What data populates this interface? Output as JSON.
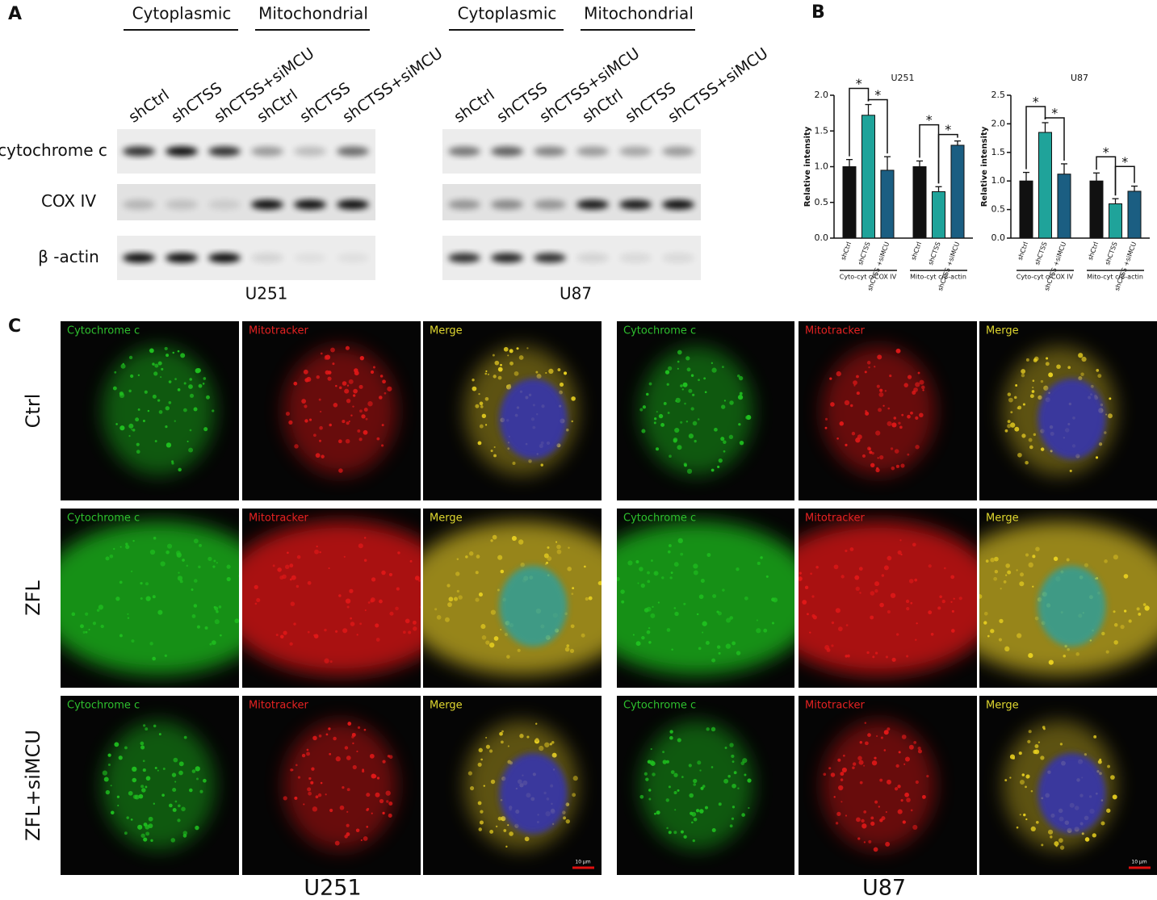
{
  "panel_a": {
    "label": "A",
    "cell_lines": [
      {
        "name": "U251",
        "fractions": [
          "Cytoplasmic",
          "Mitochondrial"
        ],
        "lanes": [
          "shCtrl",
          "shCTSS",
          "shCTSS+siMCU",
          "shCtrl",
          "shCTSS",
          "shCTSS+siMCU"
        ]
      },
      {
        "name": "U87",
        "fractions": [
          "Cytoplasmic",
          "Mitochondrial"
        ],
        "lanes": [
          "shCtrl",
          "shCTSS",
          "shCTSS+siMCU",
          "shCtrl",
          "shCTSS",
          "shCTSS+siMCU"
        ]
      }
    ],
    "rows": [
      "cytochrome c",
      "COX IV",
      "β -actin"
    ]
  },
  "panel_b_label": "B",
  "chart_data": [
    {
      "type": "bar",
      "title": "U251",
      "y_label": "Relative intensity",
      "ylim": [
        0,
        2
      ],
      "yticks": [
        {
          "value": 0,
          "label": "0.0"
        },
        {
          "value": 0.5,
          "label": "0.5"
        },
        {
          "value": 1,
          "label": "1.0"
        },
        {
          "value": 1.5,
          "label": "1.5"
        },
        {
          "value": 2,
          "label": "2.0"
        }
      ],
      "colors": [
        "#111111",
        "#1fa39a",
        "#1b5e82"
      ],
      "groups": [
        {
          "label": "Cyto-cyt c/COX IV",
          "categories": [
            "shCtrl",
            "shCTSS",
            "shCTSS +siMCU"
          ],
          "values": [
            1.0,
            1.72,
            0.95
          ],
          "errors": [
            0.1,
            0.15,
            0.19
          ]
        },
        {
          "label": "Mito-cyt c/β-actin",
          "categories": [
            "shCtrl",
            "shCTSS",
            "shCTSS +siMCU"
          ],
          "values": [
            1.0,
            0.65,
            1.3
          ],
          "errors": [
            0.08,
            0.07,
            0.06
          ]
        }
      ],
      "annotations": [
        "*",
        "*",
        "*",
        "*"
      ]
    },
    {
      "type": "bar",
      "title": "U87",
      "y_label": "Relative intensity",
      "ylim": [
        0,
        2.5
      ],
      "yticks": [
        {
          "value": 0,
          "label": "0.0"
        },
        {
          "value": 0.5,
          "label": "0.5"
        },
        {
          "value": 1,
          "label": "1.0"
        },
        {
          "value": 1.5,
          "label": "1.5"
        },
        {
          "value": 2,
          "label": "2.0"
        },
        {
          "value": 2.5,
          "label": "2.5"
        }
      ],
      "colors": [
        "#111111",
        "#1fa39a",
        "#1b5e82"
      ],
      "groups": [
        {
          "label": "Cyto-cyt c/COX IV",
          "categories": [
            "shCtrl",
            "shCTSS",
            "shCTSS +siMCU"
          ],
          "values": [
            1.0,
            1.85,
            1.12
          ],
          "errors": [
            0.15,
            0.17,
            0.18
          ]
        },
        {
          "label": "Mito-cyt c/β-actin",
          "categories": [
            "shCtrl",
            "shCTSS",
            "shCTSS +siMCU"
          ],
          "values": [
            1.0,
            0.6,
            0.82
          ],
          "errors": [
            0.14,
            0.09,
            0.09
          ]
        }
      ],
      "annotations": [
        "*",
        "*",
        "*",
        "*"
      ]
    }
  ],
  "panel_c": {
    "label": "C",
    "channels": [
      "Cytochrome c",
      "Mitotracker",
      "Merge"
    ],
    "conditions": [
      "Ctrl",
      "ZFL",
      "ZFL+siMCU"
    ],
    "cell_lines": [
      "U251",
      "U87"
    ],
    "scale_bar": "10 μm"
  }
}
